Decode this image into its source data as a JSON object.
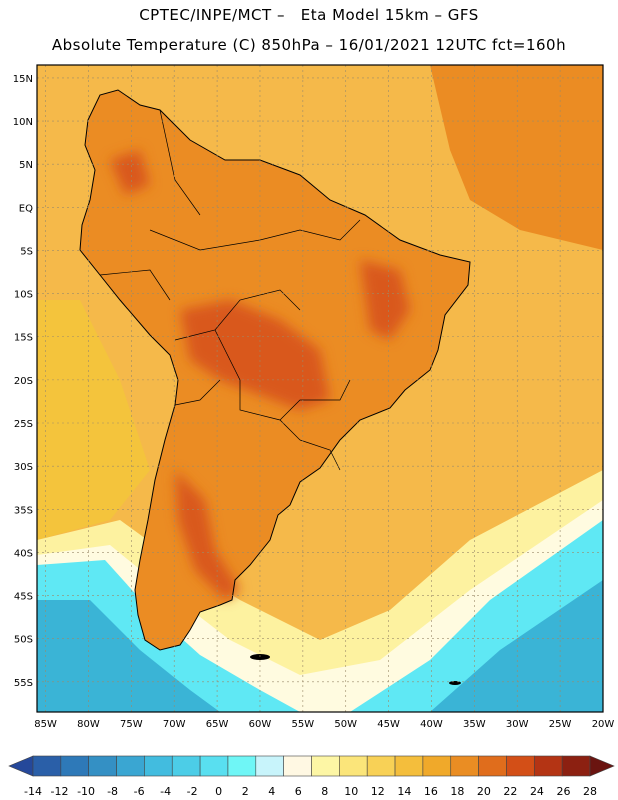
{
  "header": {
    "line1": "CPTEC/INPE/MCT –   Eta Model 15km – GFS",
    "line2": "Absolute Temperature (C) 850hPa – 16/01/2021 12UTC fct=160h"
  },
  "map": {
    "lat_ticks": [
      "15N",
      "10N",
      "5N",
      "EQ",
      "5S",
      "10S",
      "15S",
      "20S",
      "25S",
      "30S",
      "35S",
      "40S",
      "45S",
      "50S",
      "55S"
    ],
    "lon_ticks": [
      "85W",
      "80W",
      "75W",
      "70W",
      "65W",
      "60W",
      "55W",
      "50W",
      "45W",
      "40W",
      "35W",
      "30W",
      "25W",
      "20W"
    ],
    "lat_range": [
      -58.5,
      16.5
    ],
    "lon_range": [
      -86,
      -20
    ],
    "colors": {
      "ocean_base": "#f5b94a",
      "warm_land": "#eb8c23",
      "hot_land": "#d9581a",
      "mild_ocean": "#f4c43c",
      "cool_yellow": "#fdf2a0",
      "pale": "#fffbe0",
      "cold_cyan": "#5fe8f4",
      "cold_blue": "#3ab4d6",
      "coast": "#000000"
    }
  },
  "colorbar": {
    "labels": [
      "-14",
      "-12",
      "-10",
      "-8",
      "-6",
      "-4",
      "-2",
      "0",
      "2",
      "4",
      "6",
      "8",
      "10",
      "12",
      "14",
      "16",
      "18",
      "20",
      "22",
      "24",
      "26",
      "28"
    ],
    "colors": [
      "#25489a",
      "#2a5fa8",
      "#2e79b8",
      "#3490c4",
      "#3aa6d2",
      "#42bcdf",
      "#4ccde7",
      "#59dff0",
      "#6ff6f6",
      "#c8f4fb",
      "#fff8e3",
      "#fdf6a5",
      "#fbe57a",
      "#f8d156",
      "#f4be3c",
      "#f0a92a",
      "#ea8d23",
      "#e06d1c",
      "#d34f17",
      "#b43414",
      "#8c2011",
      "#6a1410"
    ]
  }
}
